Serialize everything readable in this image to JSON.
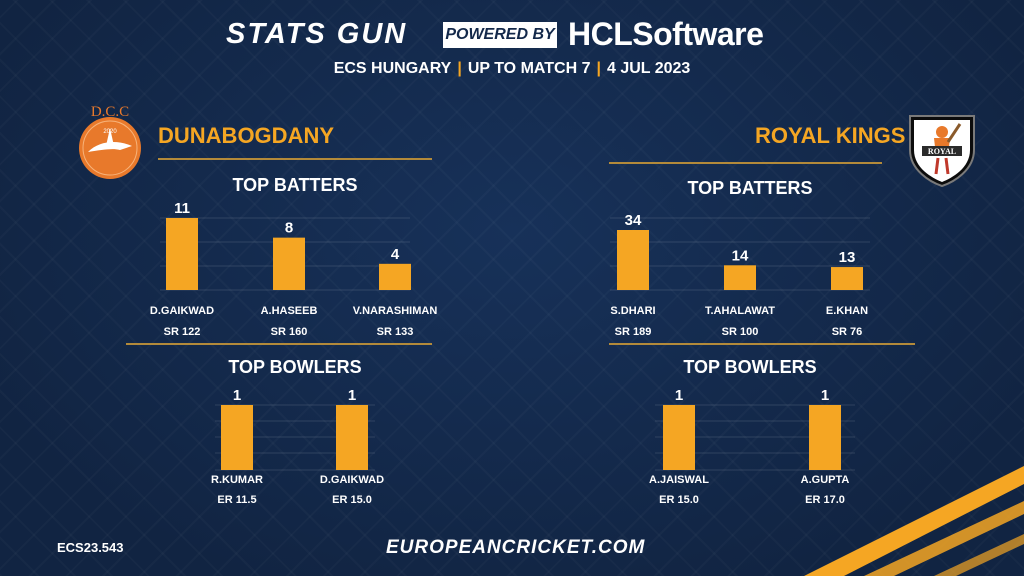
{
  "header": {
    "brand_left": "STATS GUN",
    "powered_by": "POWERED BY",
    "brand_right": "HCLSoftware",
    "competition": "ECS HUNGARY",
    "range": "UP TO MATCH 7",
    "date": "4 JUL 2023",
    "separator": "|"
  },
  "teams": {
    "left": {
      "name": "DUNABOGDANY",
      "logo_text": "D.C.C",
      "logo_year": "2020"
    },
    "right": {
      "name": "ROYAL KINGS",
      "logo_text": "ROYAL"
    }
  },
  "section_titles": {
    "batters": "TOP BATTERS",
    "bowlers": "TOP BOWLERS"
  },
  "colors": {
    "bar": "#f5a623",
    "accent": "#f5a623",
    "background": "#13284a",
    "divider": "#b38a3a"
  },
  "chart_data": [
    {
      "type": "bar",
      "team": "DUNABOGDANY",
      "title": "TOP BATTERS",
      "ylim": [
        0,
        11
      ],
      "categories": [
        "D.GAIKWAD",
        "A.HASEEB",
        "V.NARASHIMAN"
      ],
      "values": [
        11,
        8,
        4
      ],
      "sublabels": [
        "SR 122",
        "SR 160",
        "SR 133"
      ]
    },
    {
      "type": "bar",
      "team": "DUNABOGDANY",
      "title": "TOP BOWLERS",
      "ylim": [
        0,
        1
      ],
      "categories": [
        "R.KUMAR",
        "D.GAIKWAD"
      ],
      "values": [
        1,
        1
      ],
      "sublabels": [
        "ER 11.5",
        "ER 15.0"
      ]
    },
    {
      "type": "bar",
      "team": "ROYAL KINGS",
      "title": "TOP BATTERS",
      "ylim": [
        0,
        34
      ],
      "categories": [
        "S.DHARI",
        "T.AHALAWAT",
        "E.KHAN"
      ],
      "values": [
        34,
        14,
        13
      ],
      "sublabels": [
        "SR 189",
        "SR 100",
        "SR 76"
      ]
    },
    {
      "type": "bar",
      "team": "ROYAL KINGS",
      "title": "TOP BOWLERS",
      "ylim": [
        0,
        1
      ],
      "categories": [
        "A.JAISWAL",
        "A.GUPTA"
      ],
      "values": [
        1,
        1
      ],
      "sublabels": [
        "ER 15.0",
        "ER 17.0"
      ]
    }
  ],
  "footer": {
    "code": "ECS23.543",
    "site": "EUROPEANCRICKET.COM"
  }
}
